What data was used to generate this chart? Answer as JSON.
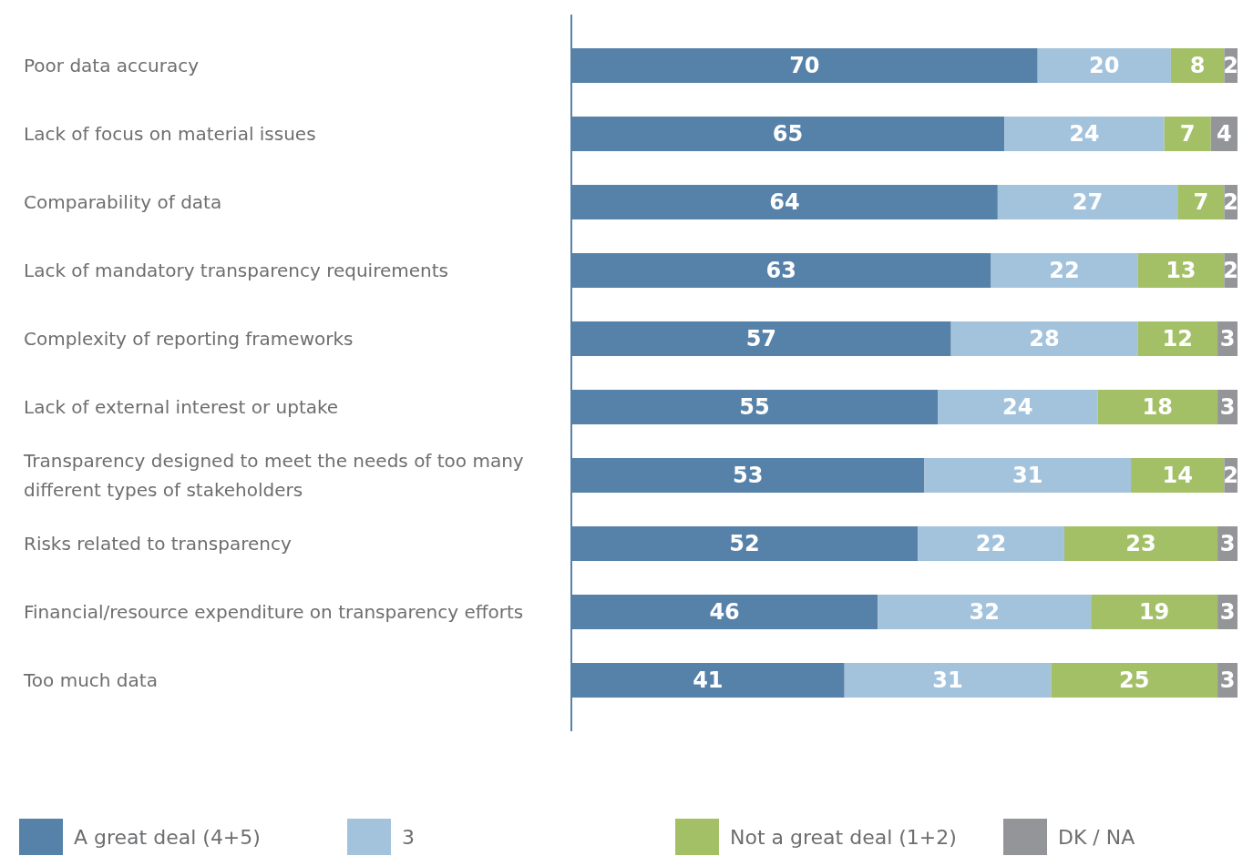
{
  "chart_data": {
    "type": "bar",
    "orientation": "horizontal",
    "stacked": true,
    "data_labels": true,
    "legend": "bottom",
    "xlim": [
      0,
      100
    ],
    "categories": [
      "Poor data accuracy",
      "Lack of focus on material issues",
      "Comparability of data",
      "Lack of mandatory transparency requirements",
      "Complexity of reporting frameworks",
      "Lack of external interest or uptake",
      "Transparency designed to meet the needs of too many different types of stakeholders",
      "Risks related to transparency",
      "Financial/resource expenditure on transparency efforts",
      "Too much data"
    ],
    "series": [
      {
        "name": "A great deal (4+5)",
        "color": "#5681a8",
        "values": [
          70,
          65,
          64,
          63,
          57,
          55,
          53,
          52,
          46,
          41
        ]
      },
      {
        "name": "3",
        "color": "#a3c3dd",
        "values": [
          20,
          24,
          27,
          22,
          28,
          24,
          31,
          22,
          32,
          31
        ]
      },
      {
        "name": "Not a great deal (1+2)",
        "color": "#a3c066",
        "values": [
          8,
          7,
          7,
          13,
          12,
          18,
          14,
          23,
          19,
          25
        ]
      },
      {
        "name": "DK / NA",
        "color": "#949599",
        "values": [
          2,
          4,
          2,
          2,
          3,
          3,
          2,
          3,
          3,
          3
        ]
      }
    ]
  }
}
